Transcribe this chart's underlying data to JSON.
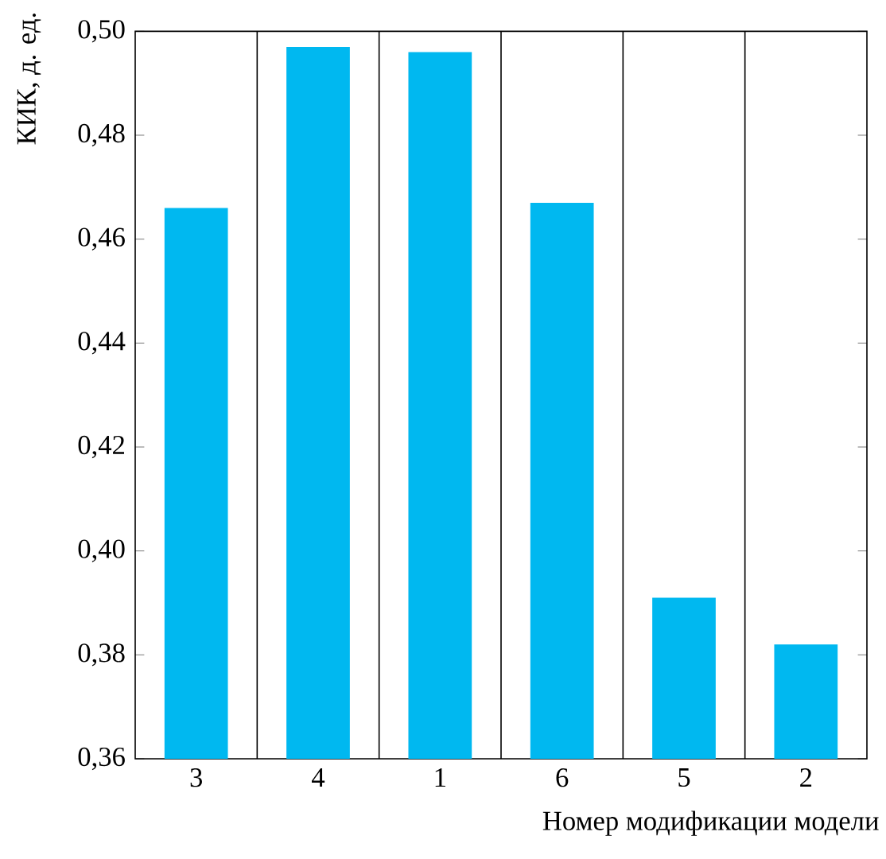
{
  "chart_data": {
    "type": "bar",
    "xlabel": "Номер модификации модели",
    "ylabel": "КИК, д. ед.",
    "categories": [
      "3",
      "4",
      "1",
      "6",
      "5",
      "2"
    ],
    "values": [
      0.466,
      0.497,
      0.496,
      0.467,
      0.391,
      0.382
    ],
    "color": "#00b8f0",
    "ylim": [
      0.36,
      0.5
    ],
    "yticks": [
      {
        "value": 0.36,
        "label": "0,36"
      },
      {
        "value": 0.38,
        "label": "0,38"
      },
      {
        "value": 0.4,
        "label": "0,40"
      },
      {
        "value": 0.42,
        "label": "0,42"
      },
      {
        "value": 0.44,
        "label": "0,44"
      },
      {
        "value": 0.46,
        "label": "0,46"
      },
      {
        "value": 0.48,
        "label": "0,48"
      },
      {
        "value": 0.5,
        "label": "0,50"
      }
    ],
    "grid": "x"
  }
}
